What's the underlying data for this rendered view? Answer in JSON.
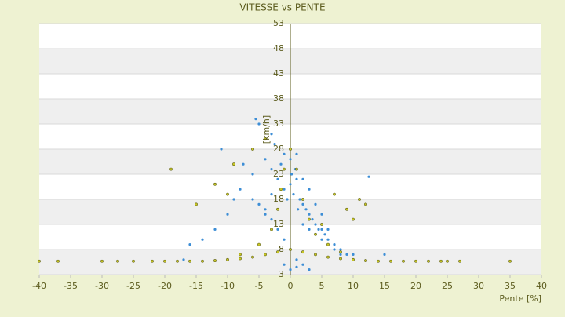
{
  "chart_data": {
    "type": "scatter",
    "title": "VITESSE vs PENTE",
    "x_label": "Pente [%]",
    "y_label": "[km/h]",
    "xlim": [
      -40,
      40
    ],
    "xticks": [
      -40,
      -35,
      -30,
      -25,
      -20,
      -15,
      -10,
      -5,
      0,
      5,
      10,
      15,
      20,
      25,
      30,
      35,
      40
    ],
    "ylim": [
      3,
      53
    ],
    "yticks": [
      3,
      8,
      13,
      18,
      23,
      28,
      33,
      38,
      43,
      48,
      53
    ],
    "grid": true,
    "series": [
      {
        "color": "#3d8ed6",
        "x": [
          -5.5,
          -5,
          -3,
          -11,
          -7.5,
          -6,
          -4,
          -3,
          -2,
          -1,
          -1,
          0,
          0.5,
          1,
          1.5,
          2,
          2.5,
          3,
          3.5,
          4,
          4.5,
          5,
          5.5,
          6,
          7,
          8,
          9,
          -8,
          -9,
          -10,
          -12,
          -14,
          -16,
          -17,
          -2.5,
          -1.5,
          -0.5,
          0.2,
          0.8,
          1.2,
          2,
          3,
          4,
          5,
          6,
          7,
          8,
          10,
          12.5,
          15,
          -4,
          -3,
          -2,
          -1,
          0,
          1,
          2,
          3,
          -6,
          -5,
          -4,
          -3,
          0,
          1,
          2,
          3,
          4,
          5,
          6,
          -1,
          0,
          1
        ],
        "values": [
          34,
          33,
          31,
          28,
          25,
          23,
          26,
          24,
          22,
          27,
          20,
          21,
          19,
          22,
          18,
          17,
          16,
          15,
          14,
          13,
          12,
          12,
          11,
          10,
          9,
          8,
          7,
          20,
          18,
          15,
          12,
          10,
          9,
          6,
          29,
          25,
          18,
          23,
          24,
          16,
          13,
          12,
          11,
          10,
          9,
          8,
          7,
          7,
          22.5,
          7,
          15,
          14,
          12,
          10,
          8,
          6,
          5,
          4,
          18,
          17,
          16,
          19,
          26,
          27,
          22,
          20,
          17,
          15,
          12,
          5,
          4,
          4.5
        ]
      },
      {
        "color": "#c9c826",
        "x": [
          -40,
          -37,
          -30,
          -27.5,
          -25,
          -22,
          -20,
          -18,
          -16,
          -14,
          -12,
          -10,
          -8,
          -6,
          -4,
          -2,
          0,
          2,
          4,
          6,
          8,
          10,
          12,
          14,
          16,
          18,
          20,
          22,
          24,
          25,
          27,
          35,
          -8,
          -5,
          -3,
          -2,
          -1.5,
          -1,
          1,
          2,
          3,
          4,
          6,
          8,
          -19,
          -15,
          -12,
          -10,
          -9,
          10,
          11,
          12,
          9,
          7,
          5,
          -6,
          -4,
          0
        ],
        "values": [
          5.7,
          5.7,
          5.7,
          5.7,
          5.7,
          5.7,
          5.7,
          5.7,
          5.7,
          5.7,
          5.8,
          6,
          6.2,
          6.5,
          7,
          7.5,
          8,
          7.5,
          7,
          6.5,
          6.2,
          6,
          5.8,
          5.7,
          5.7,
          5.7,
          5.7,
          5.7,
          5.7,
          5.7,
          5.7,
          5.7,
          7,
          9,
          12,
          16,
          20,
          24,
          24,
          18,
          14,
          11,
          9,
          7.5,
          24,
          17,
          21,
          19,
          25,
          14,
          18,
          17,
          16,
          19,
          13,
          28,
          30,
          28
        ]
      }
    ]
  }
}
